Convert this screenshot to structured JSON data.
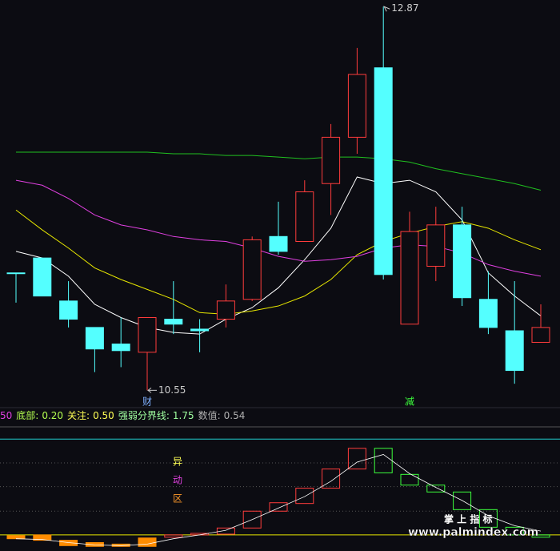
{
  "chart_data": [
    {
      "type": "candlestick",
      "ylim": [
        10.45,
        12.91
      ],
      "categories": [
        null,
        null,
        null,
        null,
        null,
        "财",
        null,
        null,
        null,
        null,
        null,
        null,
        null,
        null,
        null,
        "减",
        null,
        null,
        null,
        null,
        null
      ],
      "category_colors": [
        null,
        null,
        null,
        null,
        null,
        "#7fb0ff",
        null,
        null,
        null,
        null,
        null,
        null,
        null,
        null,
        null,
        "#3cff3c",
        null,
        null,
        null,
        null,
        null
      ],
      "open": [
        11.26,
        11.35,
        11.09,
        10.93,
        10.83,
        10.78,
        10.98,
        10.92,
        10.98,
        11.1,
        11.48,
        11.45,
        11.8,
        12.08,
        12.5,
        10.95,
        11.3,
        11.55,
        11.1,
        10.91,
        10.84
      ],
      "high": [
        11.26,
        11.35,
        11.21,
        10.93,
        10.99,
        10.99,
        11.21,
        10.98,
        11.19,
        11.48,
        11.69,
        11.82,
        12.16,
        12.62,
        12.87,
        11.63,
        11.66,
        11.66,
        11.27,
        11.21,
        11.07
      ],
      "low": [
        11.08,
        11.12,
        10.93,
        10.66,
        10.69,
        10.55,
        10.89,
        10.78,
        10.93,
        11.09,
        11.37,
        11.45,
        11.61,
        11.98,
        11.22,
        10.95,
        11.21,
        11.06,
        10.89,
        10.59,
        10.84
      ],
      "close": [
        11.26,
        11.12,
        10.98,
        10.8,
        10.79,
        10.99,
        10.95,
        10.91,
        11.09,
        11.46,
        11.39,
        11.75,
        12.08,
        12.46,
        11.25,
        11.51,
        11.55,
        11.11,
        10.93,
        10.67,
        10.93
      ],
      "up_color": "#ff3c3c",
      "down_color": "#54ffff",
      "lines": [
        {
          "color": "#ffffff",
          "values": [
            11.39,
            11.35,
            11.24,
            11.07,
            10.99,
            10.93,
            10.9,
            10.89,
            10.98,
            11.05,
            11.17,
            11.34,
            11.53,
            11.84,
            11.8,
            11.82,
            11.75,
            11.58,
            11.26,
            11.12,
            11.0
          ]
        },
        {
          "color": "#e6e600",
          "values": [
            11.64,
            11.52,
            11.41,
            11.29,
            11.22,
            11.16,
            11.1,
            11.02,
            11.01,
            11.03,
            11.06,
            11.12,
            11.22,
            11.37,
            11.45,
            11.5,
            11.54,
            11.57,
            11.53,
            11.46,
            11.4
          ]
        },
        {
          "color": "#e040e0",
          "values": [
            11.82,
            11.79,
            11.71,
            11.61,
            11.55,
            11.52,
            11.48,
            11.46,
            11.45,
            11.41,
            11.36,
            11.33,
            11.34,
            11.36,
            11.41,
            11.43,
            11.42,
            11.38,
            11.31,
            11.27,
            11.24
          ]
        },
        {
          "color": "#20c020",
          "values": [
            11.99,
            11.99,
            11.99,
            11.99,
            11.99,
            11.99,
            11.98,
            11.98,
            11.97,
            11.97,
            11.96,
            11.95,
            11.96,
            11.96,
            11.95,
            11.93,
            11.89,
            11.86,
            11.83,
            11.8,
            11.76
          ]
        }
      ],
      "annotations": [
        12.87,
        10.55
      ]
    },
    {
      "type": "indicator",
      "ylim": [
        0.29,
        1.91
      ],
      "header_lead": {
        "text": "50",
        "color": "#e040e0"
      },
      "header": [
        {
          "label": "底部:",
          "value": 0.2,
          "value_label": "0.20",
          "color": "#b4ff50"
        },
        {
          "label": "关注:",
          "value": 0.5,
          "value_label": "0.50",
          "color": "#ffff55",
          "line": "#e6e600"
        },
        {
          "label": "强弱分界线:",
          "value": 1.75,
          "value_label": "1.75",
          "color": "#a0ffa0",
          "line": "#20d0d0"
        },
        {
          "label": "数值:",
          "value": 0.54,
          "value_label": "0.54",
          "color": "#b0b0b0"
        }
      ],
      "grid": [
        1.44,
        1.13,
        0.81
      ],
      "open": [
        0.49,
        0.5,
        0.43,
        0.4,
        0.38,
        0.46,
        0.47,
        0.5,
        0.51,
        0.59,
        0.81,
        0.91,
        1.11,
        1.36,
        1.63,
        1.29,
        1.15,
        1.06,
        0.83,
        0.6,
        0.5
      ],
      "close": [
        0.45,
        0.43,
        0.36,
        0.35,
        0.35,
        0.35,
        0.5,
        0.52,
        0.59,
        0.81,
        0.92,
        1.11,
        1.36,
        1.63,
        1.31,
        1.15,
        1.06,
        0.83,
        0.6,
        0.5,
        0.47
      ],
      "colors": [
        "#ff8c00",
        "#ff8c00",
        "#ff8c00",
        "#ff8c00",
        "#ff8c00",
        "#ff8c00",
        "#ff3c3c",
        "#ff3c3c",
        "#ff3c3c",
        "#ff3c3c",
        "#ff3c3c",
        "#ff3c3c",
        "#ff3c3c",
        "#ff3c3c",
        "#3cff3c",
        "#3cff3c",
        "#3cff3c",
        "#3cff3c",
        "#3cff3c",
        "#3cff3c",
        "#3cff3c"
      ],
      "filled": [
        true,
        true,
        true,
        true,
        true,
        true,
        false,
        false,
        false,
        false,
        false,
        false,
        false,
        false,
        false,
        false,
        false,
        false,
        false,
        false,
        false
      ],
      "line": {
        "color": "#ffffff",
        "values": [
          0.45,
          0.44,
          0.4,
          0.37,
          0.36,
          0.38,
          0.45,
          0.5,
          0.56,
          0.7,
          0.85,
          1.0,
          1.2,
          1.45,
          1.55,
          1.3,
          1.12,
          0.95,
          0.75,
          0.62,
          0.55
        ]
      },
      "zone_label": [
        {
          "text": "异",
          "color": "#ffff55"
        },
        {
          "text": "动",
          "color": "#e040e0"
        },
        {
          "text": "区",
          "color": "#ff9a2a"
        }
      ]
    }
  ],
  "watermark": [
    "掌 上 指 标",
    "www.palmindex.com"
  ]
}
